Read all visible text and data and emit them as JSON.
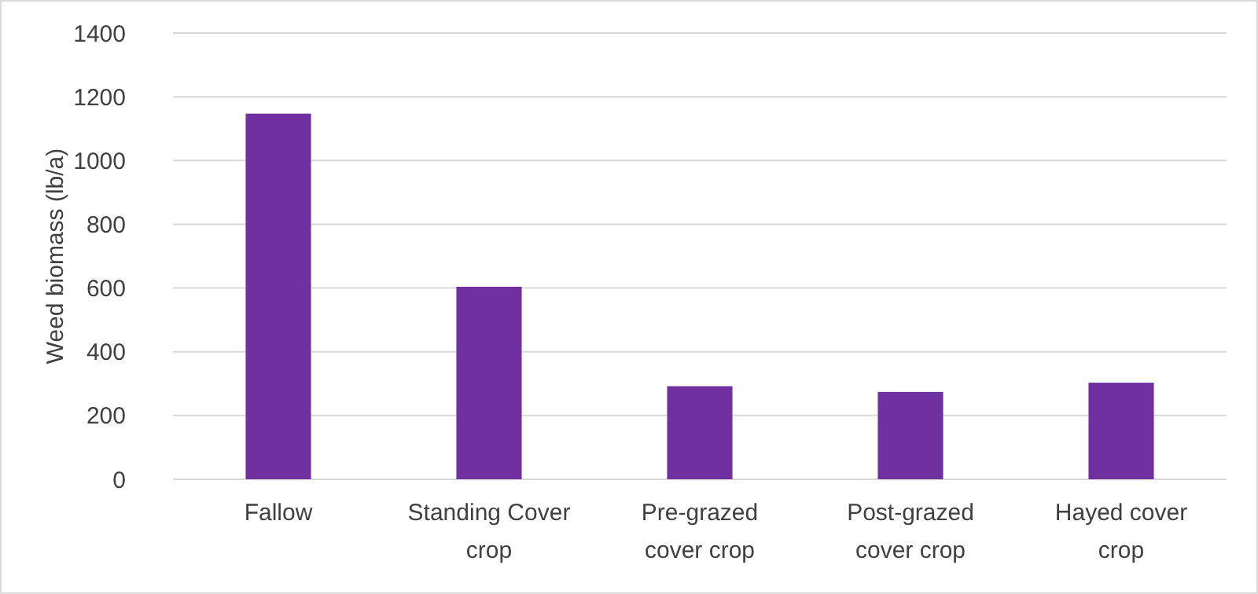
{
  "chart_data": {
    "type": "bar",
    "ylabel": "Weed biomass (lb/a)",
    "categories": [
      "Fallow",
      "Standing Cover crop",
      "Pre-grazed cover crop",
      "Post-grazed cover crop",
      "Hayed cover crop"
    ],
    "values": [
      1147,
      604,
      292,
      274,
      303
    ],
    "color": "#7030a0",
    "ylim": [
      0,
      1400
    ],
    "yticks": [
      0,
      200,
      400,
      600,
      800,
      1000,
      1200,
      1400
    ],
    "grid": "y"
  }
}
